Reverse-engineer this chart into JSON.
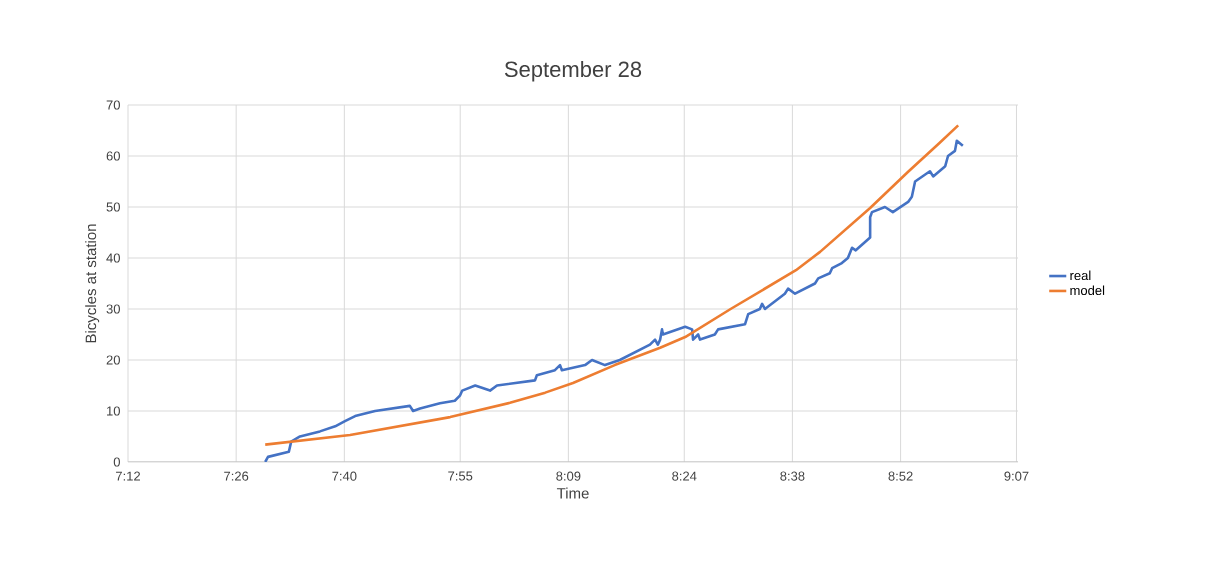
{
  "chart_data": {
    "type": "line",
    "title": "September 28",
    "xlabel": "Time",
    "ylabel": "Bicycles at station",
    "xlim": [
      7.2,
      9.12
    ],
    "xticks": [
      {
        "value": 7.2,
        "label": "7:12"
      },
      {
        "value": 7.4333,
        "label": "7:26"
      },
      {
        "value": 7.6667,
        "label": "7:40"
      },
      {
        "value": 7.9167,
        "label": "7:55"
      },
      {
        "value": 8.15,
        "label": "8:09"
      },
      {
        "value": 8.4,
        "label": "8:24"
      },
      {
        "value": 8.6333,
        "label": "8:38"
      },
      {
        "value": 8.8667,
        "label": "8:52"
      },
      {
        "value": 9.1167,
        "label": "9:07"
      }
    ],
    "ylim": [
      0,
      70
    ],
    "yticks": [
      0,
      10,
      20,
      30,
      40,
      50,
      60,
      70
    ],
    "grid": true,
    "legend": "right",
    "marker": "none",
    "line_style": "solid",
    "series": [
      {
        "name": "real",
        "color": "#4472c4",
        "x": [
          7.496,
          7.502,
          7.547,
          7.552,
          7.571,
          7.614,
          7.647,
          7.668,
          7.69,
          7.733,
          7.808,
          7.815,
          7.83,
          7.873,
          7.905,
          7.916,
          7.921,
          7.949,
          7.981,
          7.996,
          8.078,
          8.082,
          8.121,
          8.132,
          8.136,
          8.186,
          8.201,
          8.229,
          8.261,
          8.326,
          8.337,
          8.343,
          8.348,
          8.352,
          8.354,
          8.402,
          8.417,
          8.419,
          8.43,
          8.434,
          8.466,
          8.473,
          8.531,
          8.538,
          8.563,
          8.568,
          8.574,
          8.617,
          8.624,
          8.639,
          8.682,
          8.689,
          8.714,
          8.719,
          8.74,
          8.753,
          8.762,
          8.77,
          8.801,
          8.801,
          8.805,
          8.833,
          8.85,
          8.883,
          8.891,
          8.898,
          8.93,
          8.937,
          8.963,
          8.969,
          8.984,
          8.988,
          9.001
        ],
        "values": [
          0,
          1,
          2,
          4,
          5,
          6,
          7,
          8,
          9,
          10,
          11,
          10,
          10.5,
          11.5,
          12,
          13,
          14,
          15,
          14,
          15,
          16,
          17,
          18,
          19,
          18,
          19,
          20,
          19,
          20,
          23,
          24,
          23,
          24,
          26,
          25,
          26.5,
          26,
          24,
          25,
          24,
          25,
          26,
          27,
          29,
          30,
          31,
          30,
          33,
          34,
          33,
          35,
          36,
          37,
          38,
          39,
          40,
          42,
          41.5,
          44,
          48,
          49,
          50,
          49,
          51,
          52,
          55,
          57,
          56,
          58,
          60,
          61,
          63,
          62
        ]
      },
      {
        "name": "model",
        "color": "#ed7d31",
        "x": [
          7.496,
          7.679,
          7.895,
          8.024,
          8.1,
          8.16,
          8.25,
          8.348,
          8.402,
          8.5,
          8.641,
          8.693,
          8.801,
          8.883,
          8.95,
          8.991
        ],
        "values": [
          3.4,
          5.3,
          8.8,
          11.6,
          13.6,
          15.5,
          19,
          22.4,
          24.5,
          30,
          37.6,
          41.2,
          49.8,
          56.9,
          62.5,
          66
        ]
      }
    ]
  }
}
